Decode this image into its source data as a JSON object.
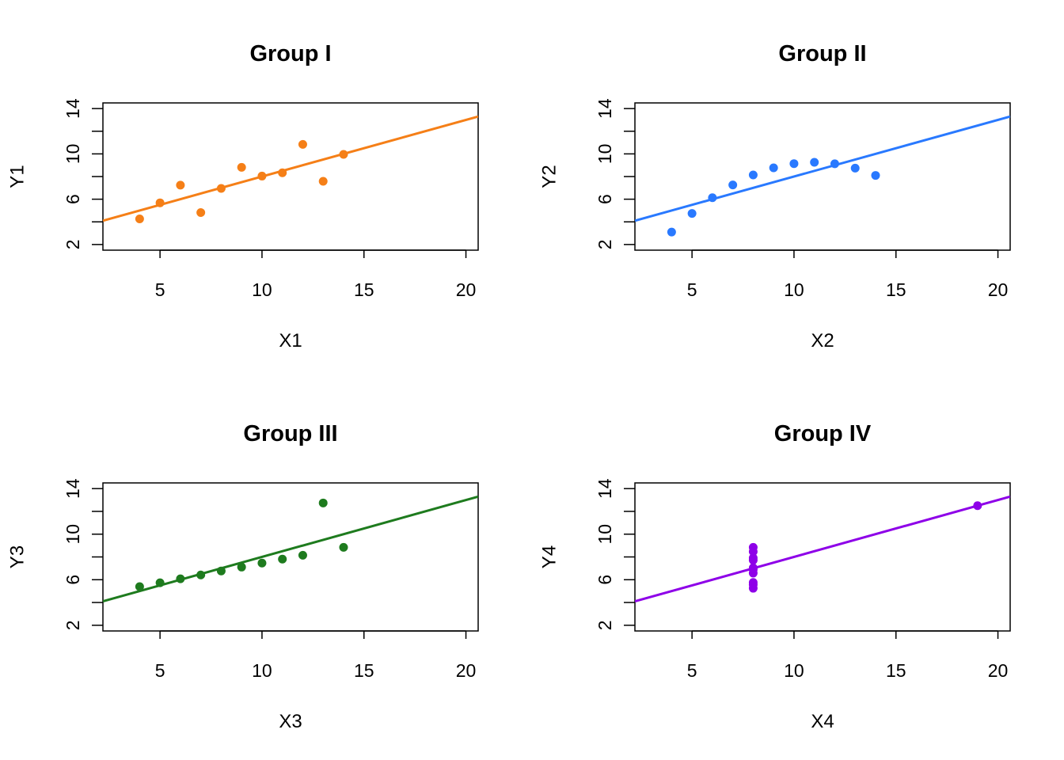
{
  "chart_data": [
    {
      "type": "scatter",
      "title": "Group I",
      "xlabel": "X1",
      "ylabel": "Y1",
      "color": "#F57F17",
      "xlim": [
        2.2,
        20.6
      ],
      "ylim": [
        1.5,
        14.5
      ],
      "xticks": [
        "5",
        "10",
        "15",
        "20"
      ],
      "yticks": [
        "2",
        "6",
        "10",
        "14"
      ],
      "grid": false,
      "points": {
        "x": [
          4,
          5,
          6,
          7,
          8,
          9,
          10,
          11,
          12,
          13,
          14
        ],
        "y": [
          4.26,
          5.68,
          7.24,
          4.82,
          6.95,
          8.81,
          8.04,
          8.33,
          10.84,
          7.58,
          9.96
        ]
      },
      "fit_line": {
        "intercept": 3.0,
        "slope": 0.5
      }
    },
    {
      "type": "scatter",
      "title": "Group II",
      "xlabel": "X2",
      "ylabel": "Y2",
      "color": "#2979FF",
      "xlim": [
        2.2,
        20.6
      ],
      "ylim": [
        1.5,
        14.5
      ],
      "xticks": [
        "5",
        "10",
        "15",
        "20"
      ],
      "yticks": [
        "2",
        "6",
        "10",
        "14"
      ],
      "grid": false,
      "points": {
        "x": [
          4,
          5,
          6,
          7,
          8,
          9,
          10,
          11,
          12,
          13,
          14
        ],
        "y": [
          3.1,
          4.74,
          6.13,
          7.26,
          8.14,
          8.77,
          9.14,
          9.26,
          9.13,
          8.74,
          8.1
        ]
      },
      "fit_line": {
        "intercept": 3.0,
        "slope": 0.5
      }
    },
    {
      "type": "scatter",
      "title": "Group III",
      "xlabel": "X3",
      "ylabel": "Y3",
      "color": "#1E7B1E",
      "xlim": [
        2.2,
        20.6
      ],
      "ylim": [
        1.5,
        14.5
      ],
      "xticks": [
        "5",
        "10",
        "15",
        "20"
      ],
      "yticks": [
        "2",
        "6",
        "10",
        "14"
      ],
      "grid": false,
      "points": {
        "x": [
          4,
          5,
          6,
          7,
          8,
          9,
          10,
          11,
          12,
          13,
          14
        ],
        "y": [
          5.39,
          5.73,
          6.08,
          6.42,
          6.77,
          7.11,
          7.46,
          7.81,
          8.15,
          12.74,
          8.84
        ]
      },
      "fit_line": {
        "intercept": 3.0,
        "slope": 0.5
      }
    },
    {
      "type": "scatter",
      "title": "Group IV",
      "xlabel": "X4",
      "ylabel": "Y4",
      "color": "#8E00E8",
      "xlim": [
        2.2,
        20.6
      ],
      "ylim": [
        1.5,
        14.5
      ],
      "xticks": [
        "5",
        "10",
        "15",
        "20"
      ],
      "yticks": [
        "2",
        "6",
        "10",
        "14"
      ],
      "grid": false,
      "points": {
        "x": [
          8,
          8,
          8,
          8,
          8,
          8,
          8,
          19,
          8,
          8,
          8
        ],
        "y": [
          6.58,
          5.76,
          7.71,
          8.84,
          8.47,
          7.04,
          5.25,
          12.5,
          5.56,
          7.91,
          6.89
        ]
      },
      "fit_line": {
        "intercept": 3.0,
        "slope": 0.5
      }
    }
  ]
}
